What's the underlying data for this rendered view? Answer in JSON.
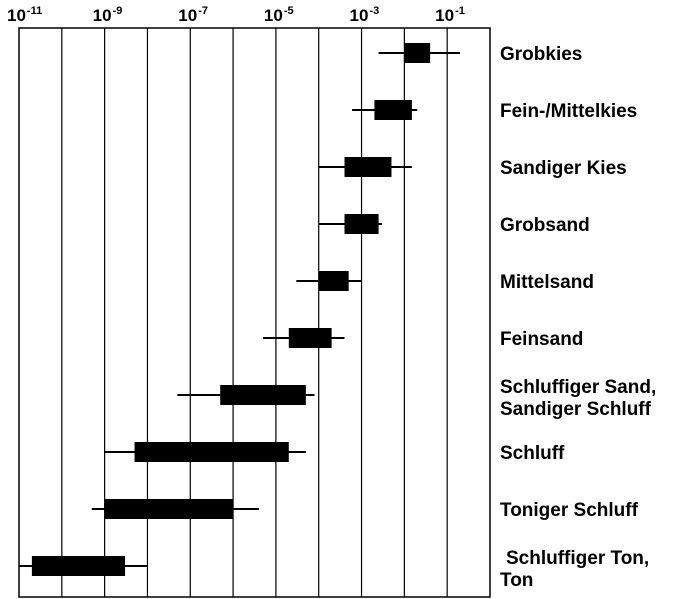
{
  "chart_data": {
    "type": "range",
    "x_scale": "log",
    "xlim": [
      1e-11,
      1
    ],
    "x_ticks": [
      {
        "base": "10",
        "exponent": "-11",
        "value": 1e-11
      },
      {
        "base": "10",
        "exponent": "-9",
        "value": 1e-09
      },
      {
        "base": "10",
        "exponent": "-7",
        "value": 1e-07
      },
      {
        "base": "10",
        "exponent": "-5",
        "value": 1e-05
      },
      {
        "base": "10",
        "exponent": "-3",
        "value": 0.001
      },
      {
        "base": "10",
        "exponent": "-1",
        "value": 0.1
      }
    ],
    "grid": "vertical, one line per decade",
    "axis_position": "top",
    "category_label_position": "right",
    "bar_color": "#000000",
    "categories": [
      {
        "label_lines": [
          "Grobkies"
        ],
        "whisker": [
          0.0025,
          0.2
        ],
        "box": [
          0.01,
          0.04
        ]
      },
      {
        "label_lines": [
          "Fein-/Mittelkies"
        ],
        "whisker": [
          0.0006,
          0.02
        ],
        "box": [
          0.002,
          0.015
        ]
      },
      {
        "label_lines": [
          "Sandiger Kies"
        ],
        "whisker": [
          0.0001,
          0.015
        ],
        "box": [
          0.0004,
          0.005
        ]
      },
      {
        "label_lines": [
          "Grobsand"
        ],
        "whisker": [
          0.0001,
          0.003
        ],
        "box": [
          0.0004,
          0.0025
        ]
      },
      {
        "label_lines": [
          "Mittelsand"
        ],
        "whisker": [
          3e-05,
          0.001
        ],
        "box": [
          0.0001,
          0.0005
        ]
      },
      {
        "label_lines": [
          "Feinsand"
        ],
        "whisker": [
          5e-06,
          0.0004
        ],
        "box": [
          2e-05,
          0.0002
        ]
      },
      {
        "label_lines": [
          "Schluffiger Sand,",
          "Sandiger Schluff"
        ],
        "whisker": [
          5e-08,
          8e-05
        ],
        "box": [
          5e-07,
          5e-05
        ]
      },
      {
        "label_lines": [
          "Schluff"
        ],
        "whisker": [
          1e-09,
          5e-05
        ],
        "box": [
          5e-09,
          2e-05
        ]
      },
      {
        "label_lines": [
          "Toniger Schluff"
        ],
        "whisker": [
          5e-10,
          4e-06
        ],
        "box": [
          1e-09,
          1e-06
        ]
      },
      {
        "label_lines": [
          "Schluffiger Ton,",
          "Ton"
        ],
        "whisker": [
          1e-11,
          1e-08
        ],
        "box": [
          2e-11,
          3e-09
        ]
      }
    ]
  }
}
